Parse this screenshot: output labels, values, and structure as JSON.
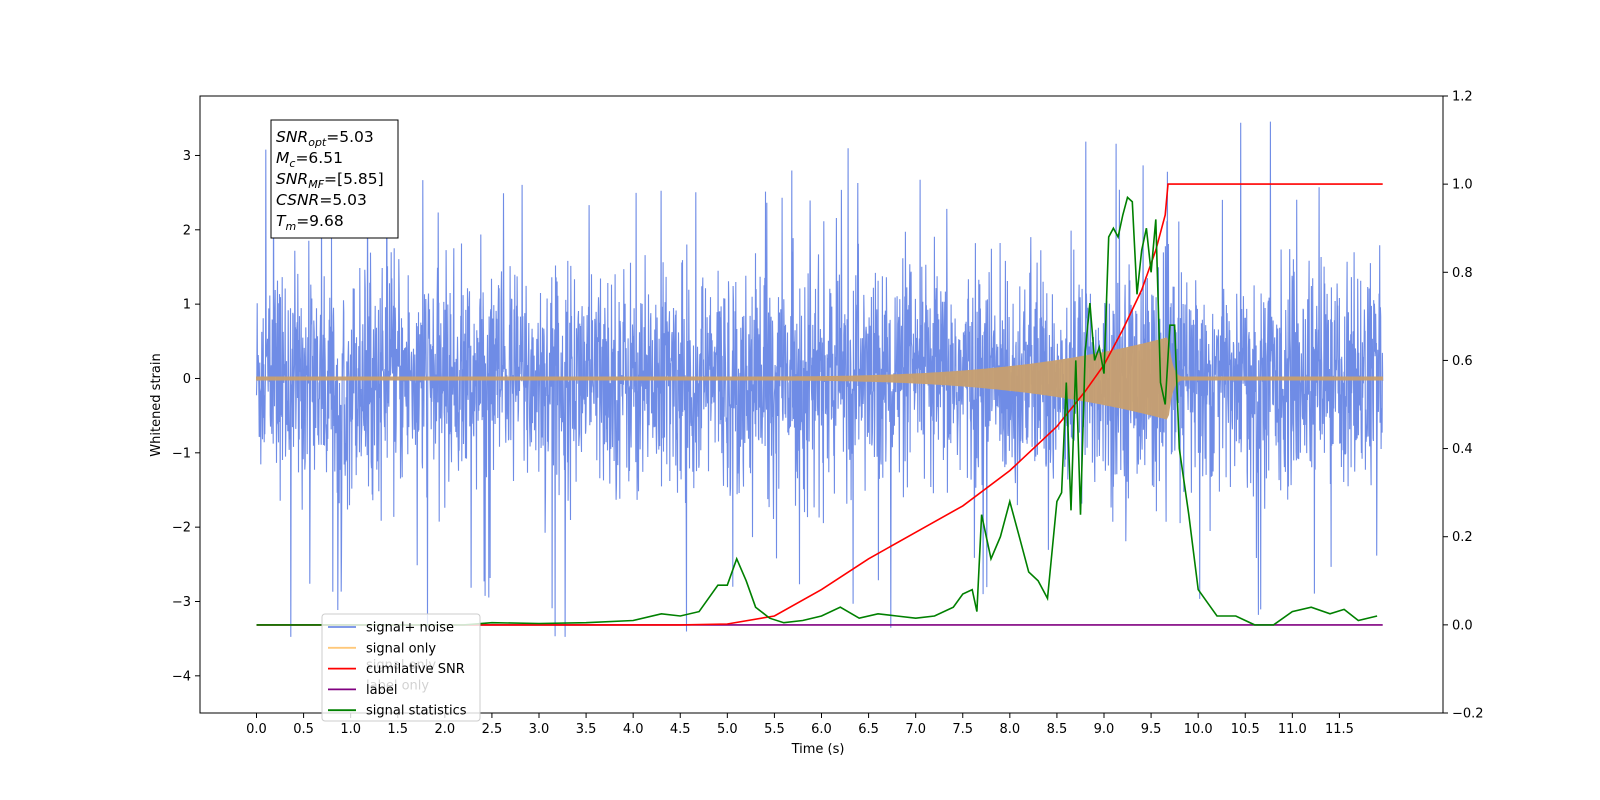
{
  "chart_data": {
    "type": "line",
    "xlabel": "Time (s)",
    "ylabel": "Whitened strain",
    "x_ticks": [
      "0.0",
      "0.5",
      "1.0",
      "1.5",
      "2.0",
      "2.5",
      "3.0",
      "3.5",
      "4.0",
      "4.5",
      "5.0",
      "5.5",
      "6.0",
      "6.5",
      "7.0",
      "7.5",
      "8.0",
      "8.5",
      "9.0",
      "9.5",
      "10.0",
      "10.5",
      "11.0",
      "11.5"
    ],
    "xlim": [
      -0.6,
      12.6
    ],
    "ylim_left": [
      -4.5,
      3.8
    ],
    "y_ticks_left": [
      "3",
      "2",
      "1",
      "0",
      "−1",
      "−2",
      "−3",
      "−4"
    ],
    "ylim_right": [
      -0.2,
      1.2
    ],
    "y_ticks_right": [
      "1.2",
      "1.0",
      "0.8",
      "0.6",
      "0.4",
      "0.2",
      "0.0",
      "−0.2"
    ],
    "grid": false,
    "legend_position": "lower-left",
    "legend": [
      {
        "label": "signal+ noise",
        "color": "#6f8ce6"
      },
      {
        "label": "signal only",
        "color": "#ffc87a"
      },
      {
        "label": "cumilative SNR",
        "color": "#ff0000"
      },
      {
        "label": "label",
        "color": "#800080"
      },
      {
        "label": "signal statistics",
        "color": "#008000"
      }
    ],
    "legend_ghost_labels": [
      "signal only",
      "label only"
    ],
    "annotation": [
      {
        "sym": "SNR",
        "sub": "opt",
        "value": "=5.03"
      },
      {
        "sym": "M",
        "sub": "c",
        "value": "=6.51"
      },
      {
        "sym": "SNR",
        "sub": "MF",
        "value": "=[5.85]"
      },
      {
        "sym": "CSNR",
        "sub": "",
        "value": "=5.03"
      },
      {
        "sym": "T",
        "sub": "m",
        "value": "=9.68"
      }
    ],
    "noise": {
      "name": "signal+ noise",
      "axis": "left",
      "t_start": 0.0,
      "t_end": 11.96,
      "typical_amplitude": 1.6,
      "max_amplitude": 3.5,
      "color": "#6f8ce6"
    },
    "signal": {
      "name": "signal only",
      "axis": "left",
      "t_start": 5.0,
      "t_merger": 9.68,
      "peak_amplitude": 0.55,
      "color": "#c8a070"
    },
    "series": [
      {
        "name": "cumilative SNR",
        "axis": "right",
        "color": "#ff0000",
        "x": [
          0.0,
          4.5,
          5.0,
          5.5,
          6.0,
          6.5,
          7.0,
          7.5,
          8.0,
          8.5,
          8.8,
          9.0,
          9.2,
          9.4,
          9.55,
          9.65,
          9.68,
          11.96
        ],
        "y": [
          0.0,
          0.0,
          0.002,
          0.02,
          0.08,
          0.15,
          0.21,
          0.27,
          0.35,
          0.45,
          0.53,
          0.59,
          0.67,
          0.76,
          0.85,
          0.93,
          1.0,
          1.0
        ]
      },
      {
        "name": "label",
        "axis": "right",
        "color": "#800080",
        "x": [
          0.0,
          11.96
        ],
        "y": [
          0.0,
          0.0
        ]
      },
      {
        "name": "signal statistics",
        "axis": "right",
        "color": "#008000",
        "x": [
          0.0,
          2.2,
          2.5,
          3.0,
          3.5,
          4.0,
          4.3,
          4.5,
          4.7,
          4.9,
          5.0,
          5.1,
          5.2,
          5.3,
          5.45,
          5.6,
          5.8,
          6.0,
          6.2,
          6.4,
          6.6,
          6.8,
          7.0,
          7.2,
          7.4,
          7.5,
          7.6,
          7.65,
          7.7,
          7.8,
          7.9,
          8.0,
          8.1,
          8.2,
          8.3,
          8.4,
          8.5,
          8.55,
          8.6,
          8.65,
          8.7,
          8.75,
          8.8,
          8.85,
          8.9,
          8.95,
          9.0,
          9.05,
          9.1,
          9.15,
          9.2,
          9.25,
          9.3,
          9.35,
          9.4,
          9.45,
          9.5,
          9.55,
          9.6,
          9.65,
          9.7,
          9.75,
          9.8,
          9.9,
          10.0,
          10.1,
          10.2,
          10.4,
          10.6,
          10.8,
          11.0,
          11.2,
          11.4,
          11.55,
          11.7,
          11.9
        ],
        "y": [
          0.0,
          0.0,
          0.005,
          0.003,
          0.005,
          0.01,
          0.025,
          0.02,
          0.03,
          0.09,
          0.09,
          0.15,
          0.1,
          0.04,
          0.015,
          0.005,
          0.01,
          0.02,
          0.04,
          0.015,
          0.025,
          0.02,
          0.015,
          0.02,
          0.04,
          0.07,
          0.08,
          0.03,
          0.25,
          0.15,
          0.2,
          0.28,
          0.2,
          0.12,
          0.1,
          0.06,
          0.28,
          0.3,
          0.55,
          0.26,
          0.6,
          0.25,
          0.62,
          0.73,
          0.6,
          0.63,
          0.57,
          0.88,
          0.9,
          0.88,
          0.93,
          0.97,
          0.96,
          0.75,
          0.85,
          0.9,
          0.8,
          0.92,
          0.55,
          0.5,
          0.68,
          0.68,
          0.4,
          0.25,
          0.08,
          0.05,
          0.02,
          0.02,
          0.0,
          0.0,
          0.03,
          0.04,
          0.025,
          0.035,
          0.01,
          0.02
        ]
      }
    ]
  }
}
